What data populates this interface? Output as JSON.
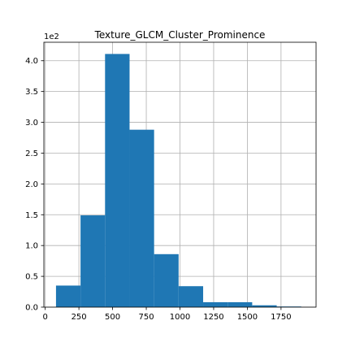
{
  "chart_data": {
    "type": "bar",
    "title": "Texture_GLCM_Cluster_Prominence",
    "xlabel": "",
    "ylabel": "",
    "y_offset_label": "1e2",
    "grid": true,
    "xlim": [
      -10,
      2010
    ],
    "ylim": [
      0,
      4.3
    ],
    "x_ticks": [
      0,
      250,
      500,
      750,
      1000,
      1250,
      1500,
      1750
    ],
    "x_tick_labels": [
      "0",
      "250",
      "500",
      "750",
      "1000",
      "1250",
      "1500",
      "1750"
    ],
    "y_ticks": [
      0,
      0.5,
      1.0,
      1.5,
      2.0,
      2.5,
      3.0,
      3.5,
      4.0
    ],
    "y_tick_labels": [
      "0.0",
      "0.5",
      "1.0",
      "1.5",
      "2.0",
      "2.5",
      "3.0",
      "3.5",
      "4.0"
    ],
    "bin_edges": [
      80,
      262,
      444,
      626,
      808,
      990,
      1172,
      1354,
      1536,
      1718,
      1900
    ],
    "values": [
      0.35,
      1.49,
      4.11,
      2.88,
      0.86,
      0.34,
      0.08,
      0.08,
      0.03,
      0.01
    ],
    "bar_color": "#1f77b4"
  }
}
